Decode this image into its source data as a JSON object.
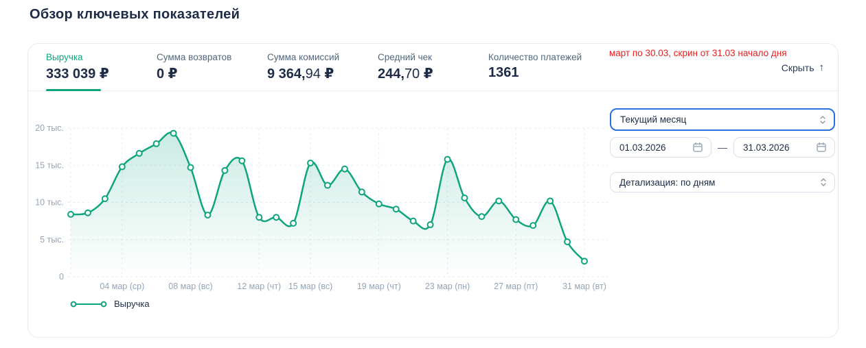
{
  "page_title": "Обзор ключевых показателей",
  "panel": {
    "note": "март по 30.03, скрин от 31.03 начало дня",
    "hide_label": "Скрыть",
    "hide_arrow": "↑",
    "metrics": [
      {
        "label": "Выручка",
        "value": "333 039",
        "decimals": "",
        "currency": " ₽",
        "active": true
      },
      {
        "label": "Сумма возвратов",
        "value": "0",
        "decimals": "",
        "currency": " ₽",
        "active": false
      },
      {
        "label": "Сумма комиссий",
        "value": "9 364,",
        "decimals": "94",
        "currency": " ₽",
        "active": false
      },
      {
        "label": "Средний чек",
        "value": "244,",
        "decimals": "70",
        "currency": " ₽",
        "active": false
      },
      {
        "label": "Количество платежей",
        "value": "1361",
        "decimals": "",
        "currency": "",
        "active": false
      }
    ]
  },
  "controls": {
    "period_select": {
      "value": "Текущий месяц"
    },
    "date_from": {
      "value": "01.03.2026"
    },
    "range_dash": "—",
    "date_to": {
      "value": "31.03.2026"
    },
    "detail_select": {
      "value": "Детализация: по дням"
    }
  },
  "chart_data": {
    "type": "line",
    "title": "",
    "xlabel": "",
    "ylabel": "",
    "unit": "тыс. ₽",
    "ylim": [
      0,
      20
    ],
    "grid": "dashed",
    "legend_position": "bottom-left",
    "legend_label": "Выручка",
    "x": [
      1,
      2,
      3,
      4,
      5,
      6,
      7,
      8,
      9,
      10,
      11,
      12,
      13,
      14,
      15,
      16,
      17,
      18,
      19,
      20,
      21,
      22,
      23,
      24,
      25,
      26,
      27,
      28,
      29,
      30,
      31
    ],
    "series": [
      {
        "name": "Выручка",
        "values_thousands": [
          8.4,
          8.6,
          10.5,
          14.8,
          16.6,
          17.9,
          19.3,
          14.7,
          8.3,
          14.3,
          15.6,
          8.0,
          8.0,
          7.2,
          15.3,
          12.3,
          14.5,
          11.4,
          9.8,
          9.1,
          7.5,
          7.0,
          15.8,
          10.6,
          8.1,
          10.2,
          7.7,
          6.9,
          10.2,
          4.7,
          2.1
        ]
      }
    ],
    "y_ticks": [
      {
        "v": 0,
        "label": "0"
      },
      {
        "v": 5,
        "label": "5 тыс."
      },
      {
        "v": 10,
        "label": "10 тыс."
      },
      {
        "v": 15,
        "label": "15 тыс."
      },
      {
        "v": 20,
        "label": "20 тыс."
      }
    ],
    "x_ticks": [
      {
        "day": 4,
        "label": "04 мар (ср)"
      },
      {
        "day": 8,
        "label": "08 мар (вс)"
      },
      {
        "day": 12,
        "label": "12 мар (чт)"
      },
      {
        "day": 15,
        "label": "15 мар (вс)"
      },
      {
        "day": 19,
        "label": "19 мар (чт)"
      },
      {
        "day": 23,
        "label": "23 мар (пн)"
      },
      {
        "day": 27,
        "label": "27 мар (пт)"
      },
      {
        "day": 31,
        "label": "31 мар (вт)"
      }
    ],
    "gridline_days": [
      1,
      4,
      8,
      12,
      15,
      19,
      23,
      27,
      31
    ],
    "colors": {
      "line": "#0ea47c",
      "marker_fill": "#ffffff",
      "area_top": "rgba(14,164,124,0.22)",
      "area_bottom": "rgba(14,164,124,0.0)",
      "grid": "#e5eaf0",
      "axis_text": "#94a4b6",
      "accent_blue": "#2a6fdb",
      "note_red": "#e81f1f"
    }
  }
}
